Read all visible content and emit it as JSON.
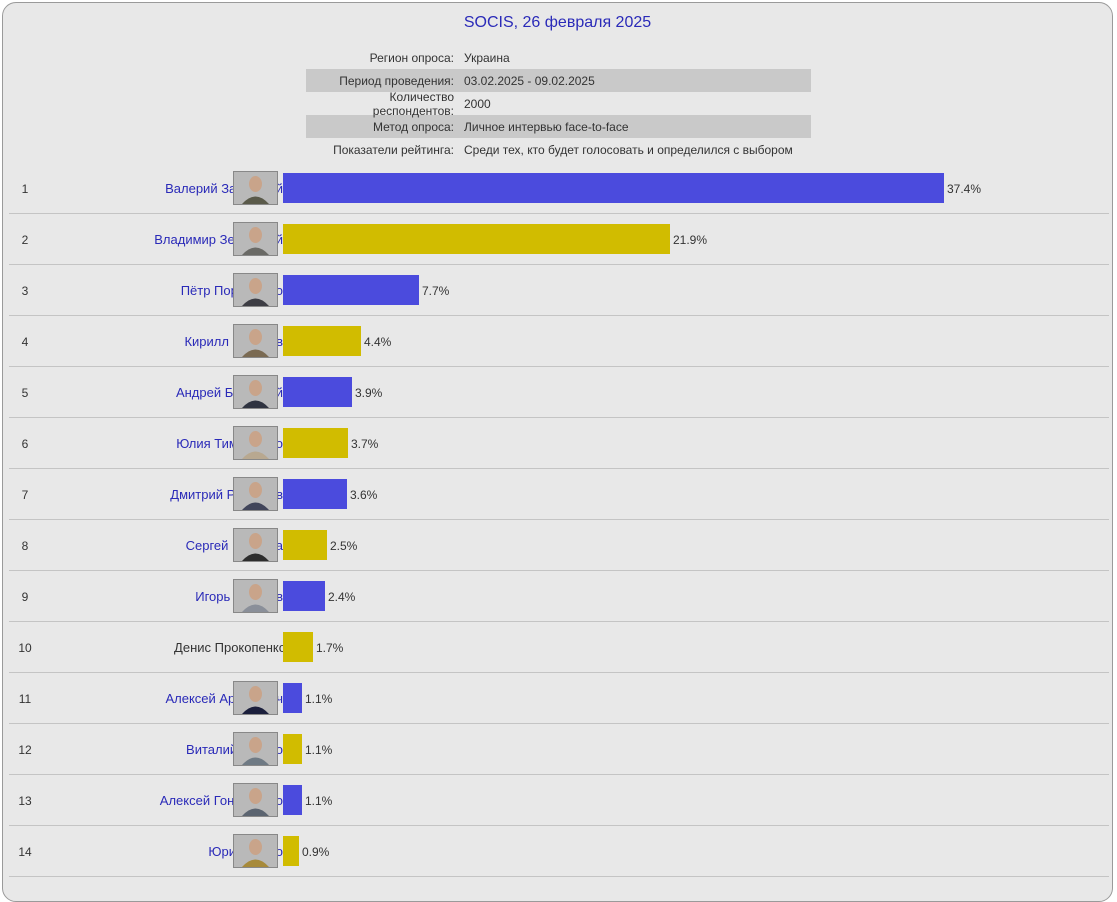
{
  "header": {
    "title": "SOCIS, 26 февраля 2025"
  },
  "info": [
    {
      "label": "Регион опроса:",
      "value": "Украина"
    },
    {
      "label": "Период проведения:",
      "value": "03.02.2025 - 09.02.2025"
    },
    {
      "label": "Количество респондентов:",
      "value": "2000"
    },
    {
      "label": "Метод опроса:",
      "value": "Личное интервью face-to-face"
    },
    {
      "label": "Показатели рейтинга:",
      "value": "Среди тех, кто будет голосовать и определился с выбором"
    }
  ],
  "colors": {
    "blue": "#4b4bdd",
    "yellow": "#d1bc00",
    "link": "#2a2ab8"
  },
  "chart_data": {
    "type": "bar",
    "orientation": "horizontal",
    "title": "SOCIS, 26 февраля 2025",
    "unit": "%",
    "xlim": [
      0,
      37.4
    ],
    "categories": [
      "Валерий Залужный",
      "Владимир Зеленский",
      "Пётр Порошенко",
      "Кирилл Буданов",
      "Андрей Билецкий",
      "Юлия Тимошенко",
      "Дмитрий Разумков",
      "Сергей Притула",
      "Игорь Терехов",
      "Денис Прокопенко",
      "Алексей Арестович",
      "Виталий Кличко",
      "Алексей Гончаренко",
      "Юрий Бойко"
    ],
    "values": [
      37.4,
      21.9,
      7.7,
      4.4,
      3.9,
      3.7,
      3.6,
      2.5,
      2.4,
      1.7,
      1.1,
      1.1,
      1.1,
      0.9
    ],
    "rows": [
      {
        "rank": "1",
        "name": "Валерий Залужный",
        "value": 37.4,
        "label": "37.4%",
        "color": "#4b4bdd",
        "link": true,
        "photo": true
      },
      {
        "rank": "2",
        "name": "Владимир Зеленский",
        "value": 21.9,
        "label": "21.9%",
        "color": "#d1bc00",
        "link": true,
        "photo": true
      },
      {
        "rank": "3",
        "name": "Пётр Порошенко",
        "value": 7.7,
        "label": "7.7%",
        "color": "#4b4bdd",
        "link": true,
        "photo": true
      },
      {
        "rank": "4",
        "name": "Кирилл Буданов",
        "value": 4.4,
        "label": "4.4%",
        "color": "#d1bc00",
        "link": true,
        "photo": true
      },
      {
        "rank": "5",
        "name": "Андрей Билецкий",
        "value": 3.9,
        "label": "3.9%",
        "color": "#4b4bdd",
        "link": true,
        "photo": true
      },
      {
        "rank": "6",
        "name": "Юлия Тимошенко",
        "value": 3.7,
        "label": "3.7%",
        "color": "#d1bc00",
        "link": true,
        "photo": true
      },
      {
        "rank": "7",
        "name": "Дмитрий Разумков",
        "value": 3.6,
        "label": "3.6%",
        "color": "#4b4bdd",
        "link": true,
        "photo": true
      },
      {
        "rank": "8",
        "name": "Сергей Притула",
        "value": 2.5,
        "label": "2.5%",
        "color": "#d1bc00",
        "link": true,
        "photo": true
      },
      {
        "rank": "9",
        "name": "Игорь Терехов",
        "value": 2.4,
        "label": "2.4%",
        "color": "#4b4bdd",
        "link": true,
        "photo": true
      },
      {
        "rank": "10",
        "name": "Денис Прокопенко",
        "value": 1.7,
        "label": "1.7%",
        "color": "#d1bc00",
        "link": false,
        "photo": false
      },
      {
        "rank": "11",
        "name": "Алексей Арестович",
        "value": 1.1,
        "label": "1.1%",
        "color": "#4b4bdd",
        "link": true,
        "photo": true
      },
      {
        "rank": "12",
        "name": "Виталий Кличко",
        "value": 1.1,
        "label": "1.1%",
        "color": "#d1bc00",
        "link": true,
        "photo": true
      },
      {
        "rank": "13",
        "name": "Алексей Гончаренко",
        "value": 1.1,
        "label": "1.1%",
        "color": "#4b4bdd",
        "link": true,
        "photo": true
      },
      {
        "rank": "14",
        "name": "Юрий Бойко",
        "value": 0.9,
        "label": "0.9%",
        "color": "#d1bc00",
        "link": true,
        "photo": true
      }
    ]
  }
}
